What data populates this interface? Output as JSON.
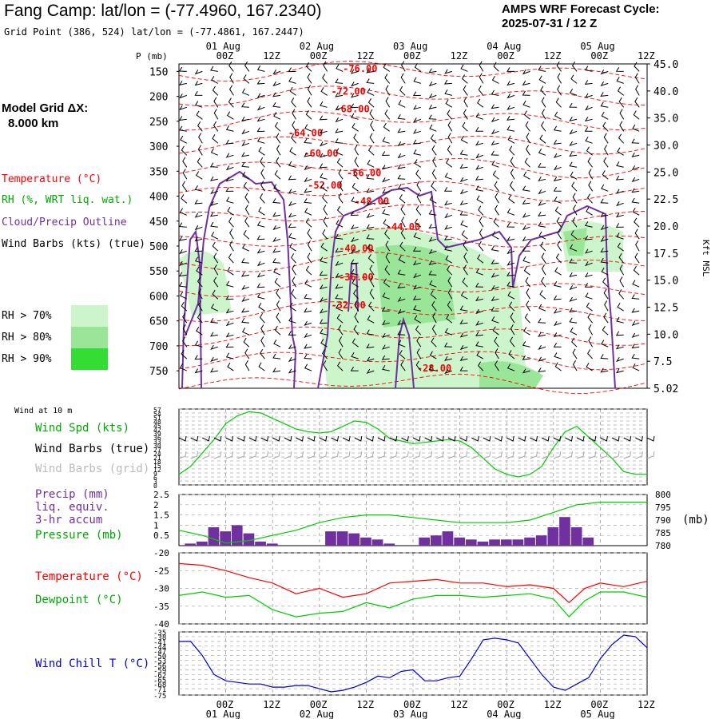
{
  "header": {
    "title": "Fang Camp:  lat/lon = (-77.4960, 167.2340)",
    "subtitle": "Grid Point (386, 524) lat/lon = (-77.4861, 167.2447)",
    "cycle_line1": "AMPS WRF Forecast Cycle:",
    "cycle_line2": "2025-07-31 / 12  Z",
    "grid_line1": "Model Grid ΔX:",
    "grid_line2": "8.000 km"
  },
  "time_axis": {
    "ticks": [
      "00Z",
      "12Z",
      "00Z",
      "12Z",
      "00Z",
      "12Z",
      "00Z",
      "12Z",
      "00Z",
      "12Z"
    ],
    "dates": [
      "01 Aug",
      "02 Aug",
      "03 Aug",
      "04 Aug",
      "05 Aug"
    ]
  },
  "colors": {
    "temperature": "#ff0000",
    "rh": "#00aa00",
    "cloud": "#7030a0",
    "wind": "#000000",
    "grid_wind": "#aaaaaa",
    "precip": "#7030a0",
    "pressure": "#00cc00",
    "dewpoint": "#00cc00",
    "windchill": "#0000cc",
    "rh70": "#ccf5cc",
    "rh80": "#99e699",
    "rh90": "#33dd33"
  },
  "legend": {
    "temperature": "Temperature (°C)",
    "rh": "RH (%, WRT liq. wat.)",
    "cloud": "Cloud/Precip Outline",
    "wind": "Wind Barbs (kts) (true)",
    "rh70": "RH > 70%",
    "rh80": "RH > 80%",
    "rh90": "RH > 90%"
  },
  "panel_labels": {
    "wind10": "Wind at 10 m",
    "wind_spd": "Wind Spd (kts)",
    "barbs_true": "Wind Barbs (true)",
    "barbs_grid": "Wind Barbs (grid)",
    "precip1": "Precip (mm)",
    "precip2": "liq. equiv.",
    "precip3": "3-hr accum",
    "pressure": "Pressure (mb)",
    "pressure_unit": "(mb)",
    "temp": "Temperature (°C)",
    "dewpoint": "Dewpoint (°C)",
    "windchill": "Wind Chill T (°C)"
  },
  "chart_data": [
    {
      "type": "heatmap",
      "name_hint": "cross-section",
      "ylabel": "P (mb)",
      "ylabel_right": "Kft MSL",
      "p_ticks": [
        150,
        200,
        250,
        300,
        350,
        400,
        450,
        500,
        550,
        600,
        650,
        700,
        750
      ],
      "kft_ticks": [
        "45.0",
        "40.0",
        "35.0",
        "30.0",
        "25.0",
        "22.5",
        "20.0",
        "17.5",
        "15.0",
        "12.5",
        "10.0",
        "7.5",
        "5.02"
      ],
      "temperature_contours": [
        {
          "label": "-76.00",
          "t": 42,
          "p": 151
        },
        {
          "label": "-72.00",
          "t": 39,
          "p": 197
        },
        {
          "label": "-68.00",
          "t": 40,
          "p": 232
        },
        {
          "label": "-64.00",
          "t": 28,
          "p": 280
        },
        {
          "label": "-60.00",
          "t": 32,
          "p": 321
        },
        {
          "label": "-56.00",
          "t": 43,
          "p": 360
        },
        {
          "label": "-52.00",
          "t": 33,
          "p": 385
        },
        {
          "label": "-48.00",
          "t": 45,
          "p": 417
        },
        {
          "label": "-44.00",
          "t": 53,
          "p": 468
        },
        {
          "label": "-40.00",
          "t": 41,
          "p": 511
        },
        {
          "label": "-36.00",
          "t": 41,
          "p": 569
        },
        {
          "label": "-32.00",
          "t": 39,
          "p": 625
        },
        {
          "label": "-28.00",
          "t": 61,
          "p": 751
        }
      ]
    },
    {
      "type": "line",
      "name_hint": "wind-speed",
      "ylim": [
        0,
        57
      ],
      "y_ticks": [
        0,
        3,
        6,
        9,
        12,
        15,
        18,
        21,
        24,
        27,
        30,
        33,
        36,
        39,
        42,
        45,
        48,
        51,
        54,
        57
      ],
      "x": [
        0,
        3,
        6,
        9,
        12,
        15,
        18,
        21,
        24,
        27,
        30,
        33,
        36,
        39,
        42,
        45,
        48,
        51,
        54,
        57,
        60,
        63,
        66,
        69,
        72,
        75,
        78,
        81,
        84,
        87,
        90,
        93,
        96,
        99,
        102,
        105,
        108,
        111,
        114,
        117,
        120
      ],
      "values": [
        8,
        14,
        24,
        34,
        46,
        52,
        55,
        54,
        50,
        46,
        42,
        40,
        39,
        40,
        44,
        48,
        47,
        42,
        35,
        33,
        31,
        32,
        33,
        34,
        33,
        28,
        20,
        12,
        8,
        6,
        8,
        14,
        28,
        40,
        44,
        36,
        28,
        20,
        10,
        8,
        8
      ]
    },
    {
      "type": "bar",
      "name_hint": "precip-pressure",
      "ylim": [
        0,
        2.5
      ],
      "y_ticks": [
        0.5,
        1.0,
        1.5,
        2.0,
        2.5
      ],
      "y2lim": [
        780,
        800
      ],
      "y2_ticks": [
        780,
        785,
        790,
        795,
        800
      ],
      "precip_x": [
        3,
        6,
        9,
        12,
        15,
        18,
        21,
        24,
        27,
        30,
        33,
        36,
        39,
        42,
        45,
        48,
        51,
        54,
        57,
        60,
        63,
        66,
        69,
        72,
        75,
        78,
        81,
        84,
        87,
        90,
        93,
        96,
        99,
        102,
        105,
        108,
        111,
        114,
        117
      ],
      "precip_values": [
        0.1,
        0.2,
        0.9,
        0.7,
        1.0,
        0.6,
        0.2,
        0.1,
        0,
        0,
        0,
        0,
        0.7,
        0.7,
        0.6,
        0.4,
        0.3,
        0.1,
        0,
        0,
        0.4,
        0.5,
        0.7,
        0.4,
        0.3,
        0.2,
        0.3,
        0.3,
        0.3,
        0.4,
        0.5,
        0.9,
        1.4,
        0.9,
        0.4,
        0,
        0,
        0,
        0
      ],
      "pressure_x": [
        0,
        6,
        12,
        18,
        24,
        30,
        36,
        42,
        48,
        54,
        60,
        66,
        72,
        78,
        84,
        90,
        96,
        102,
        108,
        114,
        120
      ],
      "pressure_values": [
        786,
        784,
        781,
        782,
        784,
        786,
        789,
        791,
        792,
        792,
        791,
        790,
        789,
        789,
        789,
        790,
        793,
        796,
        797,
        797,
        797
      ]
    },
    {
      "type": "line",
      "name_hint": "temperature-dewpoint",
      "ylim": [
        -40,
        -20
      ],
      "y_ticks": [
        -20,
        -25,
        -30,
        -35,
        -40
      ],
      "x": [
        0,
        6,
        12,
        18,
        24,
        30,
        36,
        42,
        48,
        54,
        60,
        66,
        72,
        78,
        84,
        90,
        96,
        100,
        104,
        108,
        114,
        120
      ],
      "series": [
        {
          "name": "Temperature (°C)",
          "values": [
            -23,
            -23.5,
            -25,
            -27,
            -28.5,
            -31.5,
            -30,
            -32.5,
            -31.5,
            -28.5,
            -28,
            -27.5,
            -28.5,
            -28.5,
            -29.5,
            -29,
            -30,
            -34,
            -30,
            -28.5,
            -29.5,
            -28
          ]
        },
        {
          "name": "Dewpoint (°C)",
          "values": [
            -32,
            -31,
            -32.5,
            -32,
            -36,
            -38,
            -37,
            -36.5,
            -34,
            -35.5,
            -33,
            -32,
            -32,
            -32.5,
            -32,
            -31.5,
            -33,
            -38,
            -33.5,
            -31,
            -31,
            -32.5
          ]
        }
      ]
    },
    {
      "type": "line",
      "name_hint": "wind-chill",
      "ylim": [
        -75,
        -35
      ],
      "y_ticks": [
        -35,
        -38,
        -41,
        -44,
        -47,
        -50,
        -53,
        -56,
        -59,
        -62,
        -65,
        -68,
        -71,
        -75
      ],
      "x": [
        0,
        3,
        6,
        9,
        12,
        15,
        18,
        21,
        24,
        27,
        30,
        33,
        36,
        39,
        42,
        45,
        48,
        51,
        54,
        57,
        60,
        63,
        66,
        69,
        72,
        75,
        78,
        81,
        84,
        87,
        90,
        93,
        96,
        99,
        102,
        105,
        108,
        111,
        114,
        117,
        120
      ],
      "values": [
        -41,
        -41,
        -50,
        -62,
        -66,
        -67,
        -68,
        -68,
        -70,
        -70,
        -69,
        -69,
        -71,
        -73,
        -72,
        -70,
        -67,
        -63,
        -64,
        -60,
        -59,
        -66,
        -66,
        -64,
        -63,
        -52,
        -40,
        -39,
        -40,
        -42,
        -52,
        -62,
        -70,
        -72,
        -68,
        -64,
        -52,
        -43,
        -37,
        -38,
        -45
      ]
    }
  ]
}
